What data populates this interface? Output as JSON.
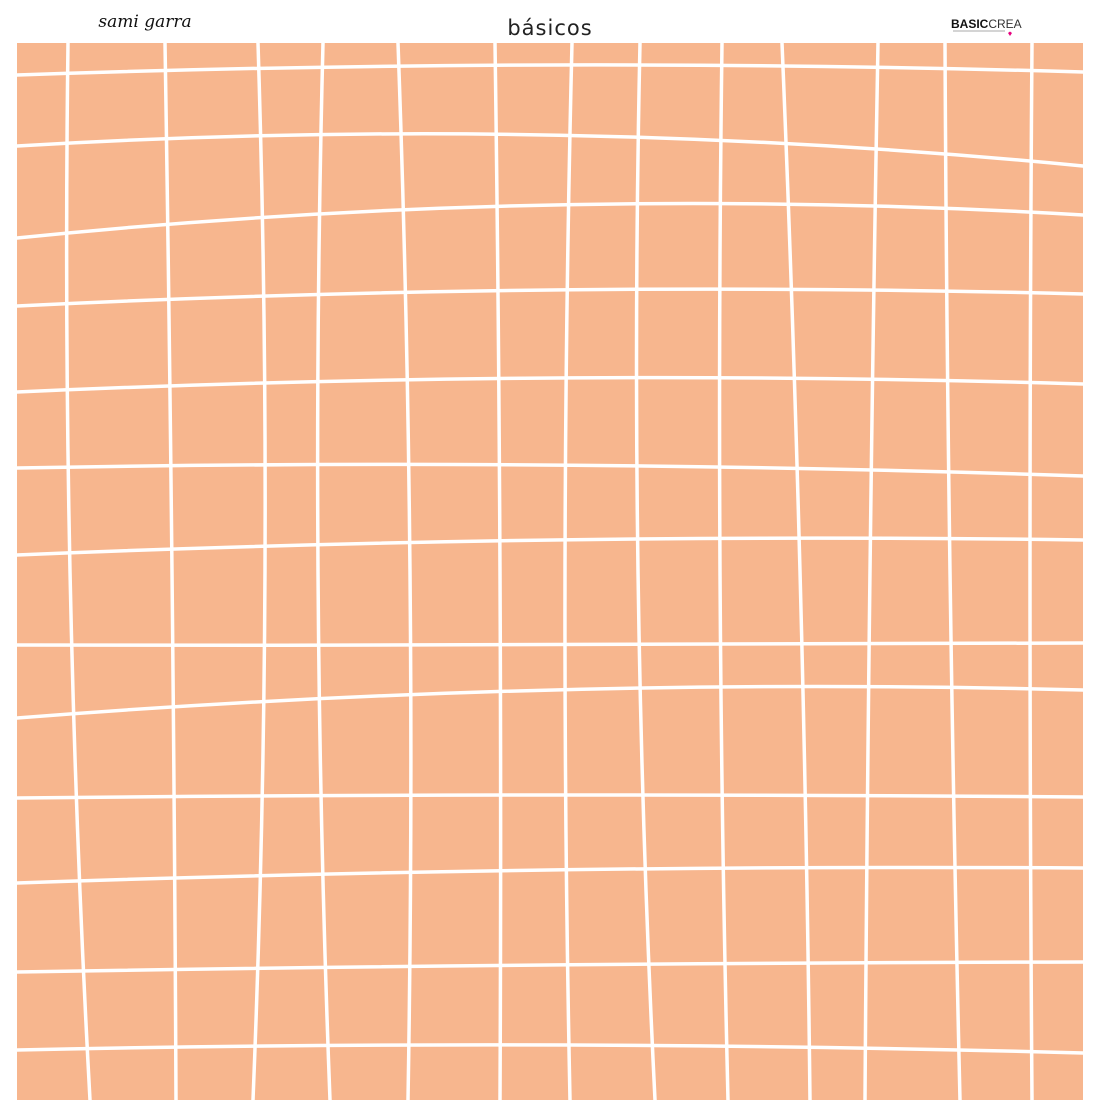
{
  "header": {
    "designer": "sami garra",
    "collection": "básicos",
    "logo": {
      "bold": "BASIC",
      "light": "CREA"
    }
  }
}
